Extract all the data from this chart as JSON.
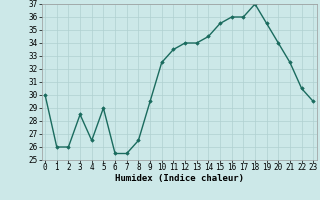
{
  "x": [
    0,
    1,
    2,
    3,
    4,
    5,
    6,
    7,
    8,
    9,
    10,
    11,
    12,
    13,
    14,
    15,
    16,
    17,
    18,
    19,
    20,
    21,
    22,
    23
  ],
  "y": [
    30,
    26,
    26,
    28.5,
    26.5,
    29,
    25.5,
    25.5,
    26.5,
    29.5,
    32.5,
    33.5,
    34,
    34,
    34.5,
    35.5,
    36,
    36,
    37,
    35.5,
    34,
    32.5,
    30.5,
    29.5
  ],
  "line_color": "#1a6b5e",
  "marker": "D",
  "marker_size": 1.8,
  "bg_color": "#cce8e8",
  "grid_color": "#b0d0d0",
  "xlabel": "Humidex (Indice chaleur)",
  "ylim_min": 25,
  "ylim_max": 37,
  "yticks": [
    25,
    26,
    27,
    28,
    29,
    30,
    31,
    32,
    33,
    34,
    35,
    36,
    37
  ],
  "xticks": [
    0,
    1,
    2,
    3,
    4,
    5,
    6,
    7,
    8,
    9,
    10,
    11,
    12,
    13,
    14,
    15,
    16,
    17,
    18,
    19,
    20,
    21,
    22,
    23
  ],
  "tick_fontsize": 5.5,
  "label_fontsize": 6.5,
  "linewidth": 1.0,
  "xlim_min": -0.3,
  "xlim_max": 23.3
}
